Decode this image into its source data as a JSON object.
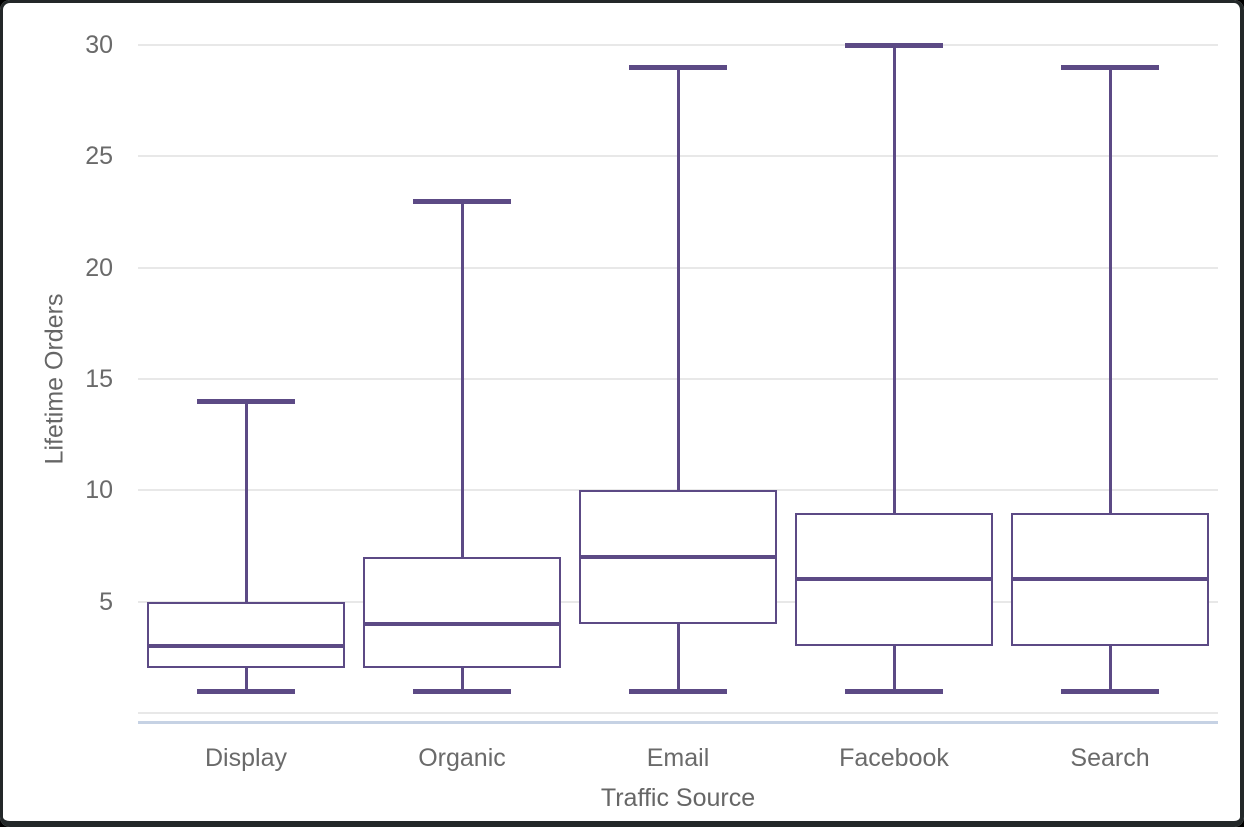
{
  "chart_data": {
    "type": "box",
    "title": "",
    "xlabel": "Traffic Source",
    "ylabel": "Lifetime Orders",
    "categories": [
      "Display",
      "Organic",
      "Email",
      "Facebook",
      "Search"
    ],
    "series": [
      {
        "category": "Display",
        "whisker_low": 1,
        "q1": 2,
        "median": 3,
        "q3": 5,
        "whisker_high": 14
      },
      {
        "category": "Organic",
        "whisker_low": 1,
        "q1": 2,
        "median": 4,
        "q3": 7,
        "whisker_high": 23
      },
      {
        "category": "Email",
        "whisker_low": 1,
        "q1": 4,
        "median": 7,
        "q3": 10,
        "whisker_high": 29
      },
      {
        "category": "Facebook",
        "whisker_low": 1,
        "q1": 3,
        "median": 6,
        "q3": 9,
        "whisker_high": 30
      },
      {
        "category": "Search",
        "whisker_low": 1,
        "q1": 3,
        "median": 6,
        "q3": 9,
        "whisker_high": 29
      }
    ],
    "yticks": [
      5,
      10,
      15,
      20,
      25,
      30
    ],
    "gridline_values": [
      0,
      5,
      10,
      15,
      20,
      25,
      30
    ],
    "ylim": [
      0,
      30
    ],
    "grid": true,
    "legend_position": "none",
    "colors": {
      "box_stroke": "#5c4a85",
      "grid": "#e8e8e8",
      "axis_line": "#c6d2e4",
      "tick_label": "#6a6a6a",
      "axis_title": "#666666"
    }
  }
}
